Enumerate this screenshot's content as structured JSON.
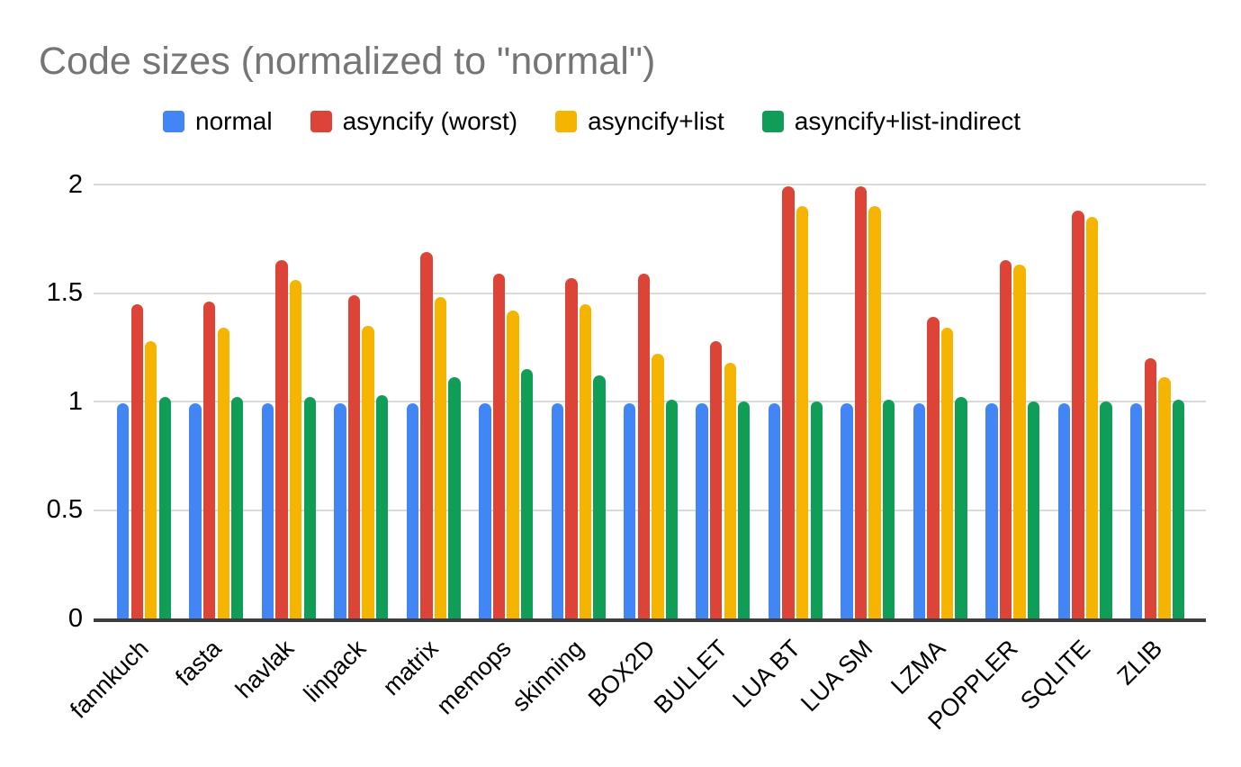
{
  "chart_data": {
    "type": "bar",
    "title": "Code sizes (normalized to \"normal\")",
    "xlabel": "",
    "ylabel": "",
    "ylim": [
      0,
      2
    ],
    "yticks": [
      0,
      0.5,
      1,
      1.5,
      2
    ],
    "grid": true,
    "legend_position": "top",
    "background": "#ffffff",
    "title_color": "#757575",
    "gridline_color": "#d9d9d9",
    "axis_line_color": "#3d3d3d",
    "categories": [
      "fannkuch",
      "fasta",
      "havlak",
      "linpack",
      "matrix",
      "memops",
      "skinning",
      "BOX2D",
      "BULLET",
      "LUA BT",
      "LUA SM",
      "LZMA",
      "POPPLER",
      "SQLITE",
      "ZLIB"
    ],
    "series": [
      {
        "name": "normal",
        "color": "#4285F4",
        "values": [
          0.99,
          0.99,
          0.99,
          0.99,
          0.99,
          0.99,
          0.99,
          0.99,
          0.99,
          0.99,
          0.99,
          0.99,
          0.99,
          0.99,
          0.99
        ]
      },
      {
        "name": "asyncify (worst)",
        "color": "#DB4437",
        "values": [
          1.45,
          1.46,
          1.65,
          1.49,
          1.69,
          1.59,
          1.57,
          1.59,
          1.28,
          1.99,
          1.99,
          1.39,
          1.65,
          1.88,
          1.2
        ]
      },
      {
        "name": "asyncify+list",
        "color": "#F4B400",
        "values": [
          1.28,
          1.34,
          1.56,
          1.35,
          1.48,
          1.42,
          1.45,
          1.22,
          1.18,
          1.9,
          1.9,
          1.34,
          1.63,
          1.85,
          1.11
        ]
      },
      {
        "name": "asyncify+list-indirect",
        "color": "#0F9D58",
        "values": [
          1.02,
          1.02,
          1.02,
          1.03,
          1.11,
          1.15,
          1.12,
          1.01,
          1.0,
          1.0,
          1.01,
          1.02,
          1.0,
          1.0,
          1.01
        ]
      }
    ]
  }
}
